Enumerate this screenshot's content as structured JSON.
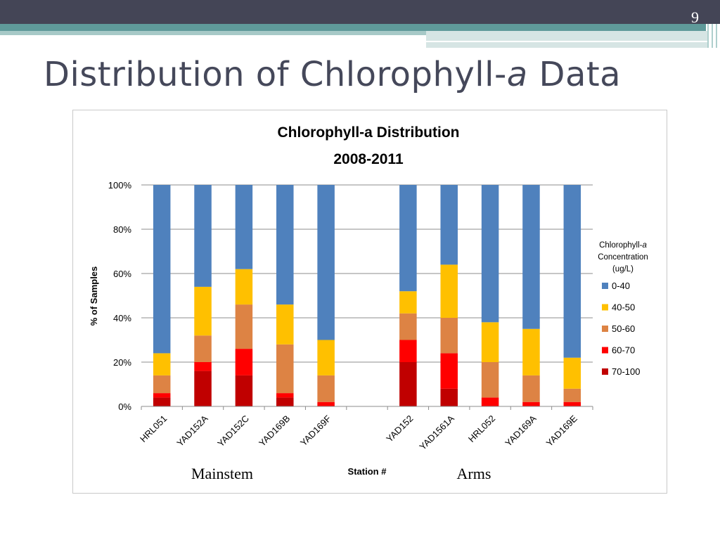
{
  "slide": {
    "number": "9",
    "title_main": "Distribution of Chlorophyll-",
    "title_italic": "a",
    "title_end": " Data"
  },
  "chart_data": {
    "type": "bar",
    "stacked": true,
    "percent": true,
    "title": "Chlorophyll-a Distribution",
    "subtitle": "2008-2011",
    "xlabel": "Station #",
    "ylabel": "% of Samples",
    "ylim": [
      0,
      100
    ],
    "yticks": [
      "0%",
      "20%",
      "40%",
      "60%",
      "80%",
      "100%"
    ],
    "grid": true,
    "categories": [
      "HRL051",
      "YAD152A",
      "YAD152C",
      "YAD169B",
      "YAD169F",
      "",
      "YAD152",
      "YAD1561A",
      "HRL052",
      "YAD169A",
      "YAD169E"
    ],
    "group_labels": [
      "Mainstem",
      "Arms"
    ],
    "legend_title": [
      "Chlorophyll-",
      "a",
      "Concentration",
      "(ug/L)"
    ],
    "legend_position": "right",
    "series": [
      {
        "name": "0-40",
        "color": "#4f81bd",
        "values": [
          76,
          46,
          38,
          54,
          70,
          null,
          48,
          36,
          62,
          65,
          78
        ]
      },
      {
        "name": "40-50",
        "color": "#ffc000",
        "values": [
          10,
          22,
          16,
          18,
          16,
          null,
          10,
          24,
          18,
          21,
          14
        ]
      },
      {
        "name": "50-60",
        "color": "#dd8344",
        "values": [
          8,
          12,
          20,
          22,
          12,
          null,
          12,
          16,
          16,
          12,
          6
        ]
      },
      {
        "name": "60-70",
        "color": "#ff0000",
        "values": [
          2,
          4,
          12,
          2,
          2,
          null,
          10,
          16,
          4,
          2,
          2
        ]
      },
      {
        "name": "70-100",
        "color": "#c00000",
        "values": [
          4,
          16,
          14,
          4,
          0,
          null,
          20,
          8,
          0,
          0,
          0
        ]
      }
    ]
  }
}
